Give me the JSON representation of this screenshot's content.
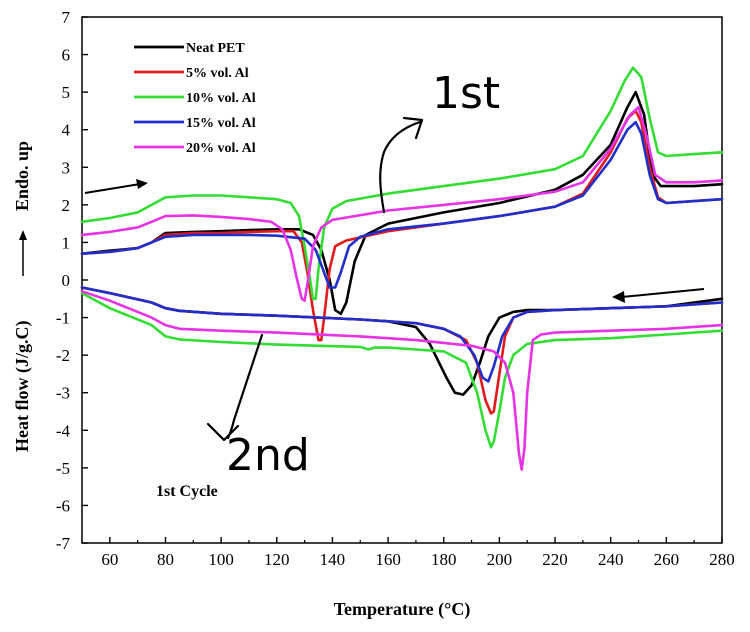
{
  "chart_data": {
    "type": "line",
    "title": "",
    "xlabel": "Temperature (°C)",
    "ylabel": "Heat flow (J/g.C)",
    "ylabel_extra": "Endo. up",
    "xlim": [
      50,
      280
    ],
    "ylim": [
      -7,
      7
    ],
    "xticks": [
      60,
      80,
      100,
      120,
      140,
      160,
      180,
      200,
      220,
      240,
      260,
      280
    ],
    "yticks": [
      -7,
      -6,
      -5,
      -4,
      -3,
      -2,
      -1,
      0,
      1,
      2,
      3,
      4,
      5,
      6,
      7
    ],
    "legend_position": "top-left",
    "annotation": "1st Cycle",
    "handwritten": [
      "1st",
      "2nd"
    ],
    "series": [
      {
        "name": "Neat PET",
        "color": "#000000",
        "heating": [
          [
            50,
            0.7
          ],
          [
            60,
            0.78
          ],
          [
            70,
            0.85
          ],
          [
            75,
            1.0
          ],
          [
            80,
            1.25
          ],
          [
            90,
            1.28
          ],
          [
            100,
            1.3
          ],
          [
            110,
            1.33
          ],
          [
            120,
            1.35
          ],
          [
            128,
            1.35
          ],
          [
            133,
            1.2
          ],
          [
            136,
            0.8
          ],
          [
            139,
            0.0
          ],
          [
            141,
            -0.8
          ],
          [
            143,
            -0.9
          ],
          [
            145,
            -0.6
          ],
          [
            148,
            0.5
          ],
          [
            152,
            1.2
          ],
          [
            160,
            1.5
          ],
          [
            180,
            1.8
          ],
          [
            200,
            2.05
          ],
          [
            220,
            2.4
          ],
          [
            230,
            2.8
          ],
          [
            240,
            3.6
          ],
          [
            246,
            4.6
          ],
          [
            249,
            5.0
          ],
          [
            252,
            4.4
          ],
          [
            255,
            2.8
          ],
          [
            258,
            2.5
          ],
          [
            270,
            2.5
          ],
          [
            280,
            2.55
          ]
        ],
        "cooling": [
          [
            280,
            -0.5
          ],
          [
            260,
            -0.7
          ],
          [
            240,
            -0.75
          ],
          [
            220,
            -0.8
          ],
          [
            210,
            -0.8
          ],
          [
            205,
            -0.85
          ],
          [
            200,
            -1.0
          ],
          [
            196,
            -1.5
          ],
          [
            193,
            -2.2
          ],
          [
            190,
            -2.8
          ],
          [
            187,
            -3.05
          ],
          [
            184,
            -3.0
          ],
          [
            181,
            -2.6
          ],
          [
            175,
            -1.7
          ],
          [
            170,
            -1.25
          ],
          [
            160,
            -1.1
          ],
          [
            150,
            -1.05
          ],
          [
            120,
            -0.95
          ],
          [
            100,
            -0.9
          ],
          [
            85,
            -0.82
          ],
          [
            80,
            -0.75
          ],
          [
            75,
            -0.6
          ],
          [
            60,
            -0.35
          ],
          [
            50,
            -0.2
          ]
        ]
      },
      {
        "name": "5% vol. Al",
        "color": "#e31a1c",
        "heating": [
          [
            50,
            0.7
          ],
          [
            60,
            0.75
          ],
          [
            70,
            0.85
          ],
          [
            75,
            1.0
          ],
          [
            80,
            1.2
          ],
          [
            90,
            1.25
          ],
          [
            100,
            1.25
          ],
          [
            110,
            1.28
          ],
          [
            120,
            1.3
          ],
          [
            126,
            1.3
          ],
          [
            129,
            1.0
          ],
          [
            131,
            0.2
          ],
          [
            133,
            -0.8
          ],
          [
            135,
            -1.6
          ],
          [
            136,
            -1.6
          ],
          [
            137,
            -1.0
          ],
          [
            139,
            0.3
          ],
          [
            141,
            0.9
          ],
          [
            145,
            1.05
          ],
          [
            160,
            1.3
          ],
          [
            180,
            1.5
          ],
          [
            200,
            1.7
          ],
          [
            220,
            1.95
          ],
          [
            230,
            2.3
          ],
          [
            240,
            3.4
          ],
          [
            246,
            4.3
          ],
          [
            249,
            4.5
          ],
          [
            251,
            4.2
          ],
          [
            254,
            3.0
          ],
          [
            257,
            2.2
          ],
          [
            260,
            2.05
          ],
          [
            270,
            2.1
          ],
          [
            280,
            2.15
          ]
        ],
        "cooling": [
          [
            280,
            -0.6
          ],
          [
            260,
            -0.7
          ],
          [
            240,
            -0.75
          ],
          [
            220,
            -0.8
          ],
          [
            210,
            -0.85
          ],
          [
            205,
            -1.0
          ],
          [
            202,
            -1.5
          ],
          [
            200,
            -2.5
          ],
          [
            198,
            -3.5
          ],
          [
            197,
            -3.55
          ],
          [
            195,
            -3.2
          ],
          [
            192,
            -2.2
          ],
          [
            188,
            -1.6
          ],
          [
            180,
            -1.3
          ],
          [
            170,
            -1.15
          ],
          [
            160,
            -1.1
          ],
          [
            150,
            -1.05
          ],
          [
            120,
            -0.95
          ],
          [
            100,
            -0.9
          ],
          [
            85,
            -0.82
          ],
          [
            80,
            -0.75
          ],
          [
            75,
            -0.6
          ],
          [
            60,
            -0.35
          ],
          [
            50,
            -0.2
          ]
        ]
      },
      {
        "name": "10% vol. Al",
        "color": "#33dd33",
        "heating": [
          [
            50,
            1.55
          ],
          [
            60,
            1.65
          ],
          [
            70,
            1.8
          ],
          [
            75,
            2.0
          ],
          [
            80,
            2.2
          ],
          [
            90,
            2.25
          ],
          [
            100,
            2.25
          ],
          [
            110,
            2.2
          ],
          [
            120,
            2.15
          ],
          [
            125,
            2.05
          ],
          [
            128,
            1.7
          ],
          [
            130,
            0.9
          ],
          [
            132,
            0.0
          ],
          [
            133,
            -0.5
          ],
          [
            134,
            -0.5
          ],
          [
            135,
            0.3
          ],
          [
            137,
            1.4
          ],
          [
            140,
            1.9
          ],
          [
            145,
            2.1
          ],
          [
            160,
            2.3
          ],
          [
            180,
            2.5
          ],
          [
            200,
            2.7
          ],
          [
            220,
            2.95
          ],
          [
            230,
            3.3
          ],
          [
            240,
            4.5
          ],
          [
            245,
            5.3
          ],
          [
            248,
            5.65
          ],
          [
            251,
            5.4
          ],
          [
            254,
            4.3
          ],
          [
            257,
            3.4
          ],
          [
            260,
            3.3
          ],
          [
            270,
            3.35
          ],
          [
            280,
            3.4
          ]
        ],
        "cooling": [
          [
            280,
            -1.35
          ],
          [
            260,
            -1.45
          ],
          [
            240,
            -1.55
          ],
          [
            220,
            -1.6
          ],
          [
            210,
            -1.7
          ],
          [
            205,
            -2.0
          ],
          [
            202,
            -2.6
          ],
          [
            200,
            -3.5
          ],
          [
            198,
            -4.3
          ],
          [
            197,
            -4.45
          ],
          [
            195,
            -4.0
          ],
          [
            192,
            -3.0
          ],
          [
            188,
            -2.2
          ],
          [
            180,
            -1.9
          ],
          [
            170,
            -1.85
          ],
          [
            160,
            -1.8
          ],
          [
            155,
            -1.8
          ],
          [
            153,
            -1.85
          ],
          [
            150,
            -1.78
          ],
          [
            120,
            -1.72
          ],
          [
            100,
            -1.65
          ],
          [
            85,
            -1.58
          ],
          [
            80,
            -1.5
          ],
          [
            75,
            -1.2
          ],
          [
            60,
            -0.75
          ],
          [
            50,
            -0.35
          ]
        ]
      },
      {
        "name": "15% vol. Al",
        "color": "#1f2fcc",
        "heating": [
          [
            50,
            0.7
          ],
          [
            60,
            0.75
          ],
          [
            70,
            0.85
          ],
          [
            75,
            1.0
          ],
          [
            80,
            1.15
          ],
          [
            90,
            1.2
          ],
          [
            100,
            1.2
          ],
          [
            110,
            1.2
          ],
          [
            120,
            1.18
          ],
          [
            130,
            1.1
          ],
          [
            134,
            0.8
          ],
          [
            137,
            0.2
          ],
          [
            139,
            -0.2
          ],
          [
            141,
            -0.2
          ],
          [
            143,
            0.2
          ],
          [
            146,
            0.9
          ],
          [
            150,
            1.15
          ],
          [
            160,
            1.35
          ],
          [
            180,
            1.5
          ],
          [
            200,
            1.7
          ],
          [
            220,
            1.95
          ],
          [
            230,
            2.25
          ],
          [
            240,
            3.2
          ],
          [
            246,
            4.0
          ],
          [
            249,
            4.2
          ],
          [
            251,
            3.9
          ],
          [
            254,
            2.8
          ],
          [
            257,
            2.15
          ],
          [
            260,
            2.05
          ],
          [
            270,
            2.1
          ],
          [
            280,
            2.15
          ]
        ],
        "cooling": [
          [
            280,
            -0.6
          ],
          [
            260,
            -0.7
          ],
          [
            240,
            -0.75
          ],
          [
            220,
            -0.8
          ],
          [
            210,
            -0.85
          ],
          [
            205,
            -1.0
          ],
          [
            201,
            -1.5
          ],
          [
            198,
            -2.3
          ],
          [
            196,
            -2.7
          ],
          [
            194,
            -2.6
          ],
          [
            191,
            -2.0
          ],
          [
            186,
            -1.5
          ],
          [
            180,
            -1.3
          ],
          [
            170,
            -1.15
          ],
          [
            160,
            -1.1
          ],
          [
            150,
            -1.05
          ],
          [
            120,
            -0.95
          ],
          [
            100,
            -0.9
          ],
          [
            85,
            -0.82
          ],
          [
            80,
            -0.75
          ],
          [
            75,
            -0.6
          ],
          [
            60,
            -0.35
          ],
          [
            50,
            -0.2
          ]
        ]
      },
      {
        "name": "20% vol. Al",
        "color": "#e633e6",
        "heating": [
          [
            50,
            1.2
          ],
          [
            60,
            1.28
          ],
          [
            70,
            1.4
          ],
          [
            75,
            1.55
          ],
          [
            80,
            1.7
          ],
          [
            90,
            1.72
          ],
          [
            100,
            1.68
          ],
          [
            110,
            1.62
          ],
          [
            118,
            1.55
          ],
          [
            122,
            1.35
          ],
          [
            125,
            0.8
          ],
          [
            127,
            0.1
          ],
          [
            129,
            -0.5
          ],
          [
            130,
            -0.55
          ],
          [
            131,
            -0.1
          ],
          [
            133,
            0.9
          ],
          [
            136,
            1.4
          ],
          [
            140,
            1.6
          ],
          [
            160,
            1.85
          ],
          [
            180,
            2.0
          ],
          [
            200,
            2.15
          ],
          [
            220,
            2.35
          ],
          [
            230,
            2.6
          ],
          [
            240,
            3.5
          ],
          [
            247,
            4.4
          ],
          [
            250,
            4.6
          ],
          [
            253,
            3.8
          ],
          [
            256,
            2.8
          ],
          [
            260,
            2.6
          ],
          [
            270,
            2.6
          ],
          [
            280,
            2.65
          ]
        ],
        "cooling": [
          [
            280,
            -1.2
          ],
          [
            260,
            -1.3
          ],
          [
            240,
            -1.35
          ],
          [
            220,
            -1.4
          ],
          [
            215,
            -1.45
          ],
          [
            212,
            -1.6
          ],
          [
            210,
            -3.0
          ],
          [
            209,
            -4.5
          ],
          [
            208,
            -5.05
          ],
          [
            207,
            -4.6
          ],
          [
            205,
            -3.0
          ],
          [
            202,
            -2.2
          ],
          [
            198,
            -1.9
          ],
          [
            190,
            -1.75
          ],
          [
            170,
            -1.6
          ],
          [
            160,
            -1.55
          ],
          [
            150,
            -1.5
          ],
          [
            120,
            -1.4
          ],
          [
            100,
            -1.35
          ],
          [
            85,
            -1.3
          ],
          [
            80,
            -1.2
          ],
          [
            75,
            -1.0
          ],
          [
            60,
            -0.55
          ],
          [
            50,
            -0.3
          ]
        ]
      }
    ]
  }
}
